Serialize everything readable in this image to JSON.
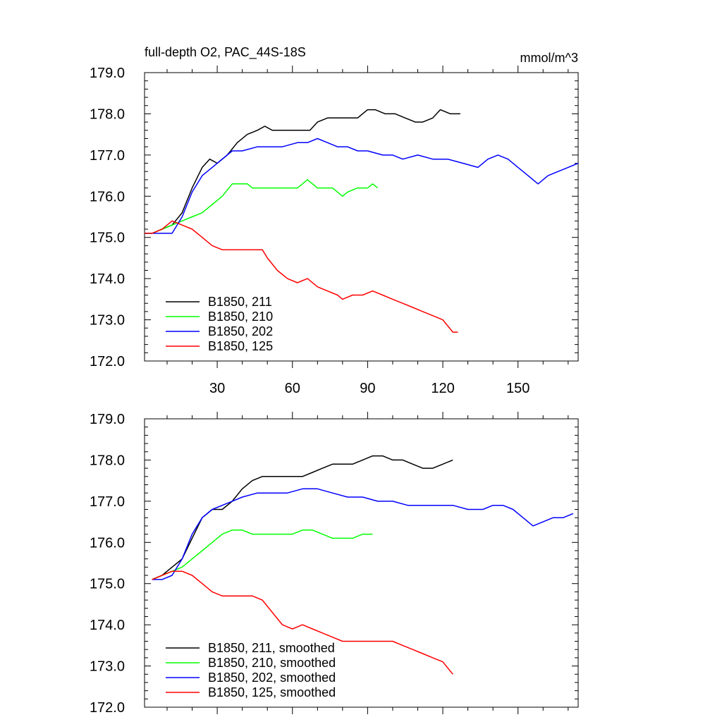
{
  "chart_data": [
    {
      "type": "line",
      "title": "full-depth O2, PAC_44S-18S",
      "units": "mmol/m^3",
      "xlim": [
        1,
        174
      ],
      "ylim": [
        172.0,
        179.0
      ],
      "yticks": [
        "172.0",
        "173.0",
        "174.0",
        "175.0",
        "176.0",
        "177.0",
        "178.0",
        "179.0"
      ],
      "xticks": [
        "30",
        "60",
        "90",
        "120",
        "150"
      ],
      "legend_position": "lower-left",
      "grid": false,
      "series": [
        {
          "name": "B1850, 211",
          "color": "#000000",
          "x": [
            1,
            4,
            8,
            12,
            16,
            20,
            24,
            27,
            30,
            34,
            38,
            42,
            46,
            49,
            52,
            56,
            60,
            64,
            67,
            70,
            74,
            78,
            82,
            86,
            90,
            93,
            97,
            101,
            105,
            109,
            112,
            116,
            119,
            123,
            127
          ],
          "y": [
            175.1,
            175.1,
            175.2,
            175.3,
            175.6,
            176.2,
            176.7,
            176.9,
            176.8,
            177.0,
            177.3,
            177.5,
            177.6,
            177.7,
            177.6,
            177.6,
            177.6,
            177.6,
            177.6,
            177.8,
            177.9,
            177.9,
            177.9,
            177.9,
            178.1,
            178.1,
            178.0,
            178.0,
            177.9,
            177.8,
            177.8,
            177.9,
            178.1,
            178.0,
            178.0
          ]
        },
        {
          "name": "B1850, 210",
          "color": "#00ff00",
          "x": [
            1,
            4,
            8,
            12,
            16,
            20,
            24,
            28,
            32,
            36,
            38,
            40,
            42,
            44,
            48,
            52,
            56,
            60,
            62,
            64,
            66,
            68,
            70,
            72,
            76,
            78,
            80,
            82,
            86,
            90,
            92,
            94
          ],
          "y": [
            175.1,
            175.1,
            175.2,
            175.3,
            175.4,
            175.5,
            175.6,
            175.8,
            176.0,
            176.3,
            176.3,
            176.3,
            176.3,
            176.2,
            176.2,
            176.2,
            176.2,
            176.2,
            176.2,
            176.3,
            176.4,
            176.3,
            176.2,
            176.2,
            176.2,
            176.1,
            176.0,
            176.1,
            176.2,
            176.2,
            176.3,
            176.2
          ]
        },
        {
          "name": "B1850, 202",
          "color": "#0000ff",
          "x": [
            1,
            4,
            8,
            12,
            16,
            20,
            24,
            28,
            32,
            36,
            40,
            46,
            50,
            56,
            62,
            66,
            70,
            74,
            78,
            82,
            86,
            90,
            96,
            100,
            104,
            110,
            116,
            122,
            128,
            134,
            138,
            142,
            146,
            150,
            154,
            158,
            162,
            166,
            170,
            174
          ],
          "y": [
            175.1,
            175.1,
            175.1,
            175.1,
            175.5,
            176.1,
            176.5,
            176.7,
            176.9,
            177.1,
            177.1,
            177.2,
            177.2,
            177.2,
            177.3,
            177.3,
            177.4,
            177.3,
            177.2,
            177.2,
            177.1,
            177.1,
            177.0,
            177.0,
            176.9,
            177.0,
            176.9,
            176.9,
            176.8,
            176.7,
            176.9,
            177.0,
            176.9,
            176.7,
            176.5,
            176.3,
            176.5,
            176.6,
            176.7,
            176.8
          ]
        },
        {
          "name": "B1850, 125",
          "color": "#ff0000",
          "x": [
            1,
            4,
            8,
            10,
            12,
            16,
            20,
            24,
            28,
            32,
            36,
            40,
            44,
            48,
            50,
            54,
            58,
            62,
            66,
            70,
            74,
            78,
            80,
            84,
            88,
            92,
            96,
            100,
            104,
            108,
            112,
            116,
            120,
            124,
            126
          ],
          "y": [
            175.1,
            175.1,
            175.2,
            175.3,
            175.4,
            175.3,
            175.2,
            175.0,
            174.8,
            174.7,
            174.7,
            174.7,
            174.7,
            174.7,
            174.5,
            174.2,
            174.0,
            173.9,
            174.0,
            173.8,
            173.7,
            173.6,
            173.5,
            173.6,
            173.6,
            173.7,
            173.6,
            173.5,
            173.4,
            173.3,
            173.2,
            173.1,
            173.0,
            172.7,
            172.7
          ]
        }
      ]
    },
    {
      "type": "line",
      "xlim": [
        1,
        174
      ],
      "ylim": [
        172.0,
        179.0
      ],
      "yticks": [
        "172.0",
        "173.0",
        "174.0",
        "175.0",
        "176.0",
        "177.0",
        "178.0",
        "179.0"
      ],
      "legend_position": "lower-left",
      "grid": false,
      "series": [
        {
          "name": "B1850, 211, smoothed",
          "color": "#000000",
          "x": [
            4,
            8,
            12,
            16,
            20,
            24,
            28,
            32,
            36,
            40,
            44,
            48,
            52,
            56,
            60,
            64,
            68,
            72,
            76,
            80,
            84,
            88,
            92,
            96,
            100,
            104,
            108,
            112,
            116,
            120,
            124
          ],
          "y": [
            175.1,
            175.2,
            175.4,
            175.6,
            176.1,
            176.6,
            176.8,
            176.8,
            177.0,
            177.3,
            177.5,
            177.6,
            177.6,
            177.6,
            177.6,
            177.6,
            177.7,
            177.8,
            177.9,
            177.9,
            177.9,
            178.0,
            178.1,
            178.1,
            178.0,
            178.0,
            177.9,
            177.8,
            177.8,
            177.9,
            178.0
          ]
        },
        {
          "name": "B1850, 210, smoothed",
          "color": "#00ff00",
          "x": [
            4,
            8,
            12,
            16,
            20,
            24,
            28,
            32,
            36,
            40,
            44,
            48,
            52,
            56,
            60,
            64,
            68,
            72,
            76,
            80,
            84,
            88,
            92
          ],
          "y": [
            175.1,
            175.2,
            175.3,
            175.4,
            175.6,
            175.8,
            176.0,
            176.2,
            176.3,
            176.3,
            176.2,
            176.2,
            176.2,
            176.2,
            176.2,
            176.3,
            176.3,
            176.2,
            176.1,
            176.1,
            176.1,
            176.2,
            176.2
          ]
        },
        {
          "name": "B1850, 202, smoothed",
          "color": "#0000ff",
          "x": [
            4,
            8,
            12,
            16,
            20,
            24,
            28,
            32,
            36,
            40,
            46,
            52,
            58,
            64,
            70,
            76,
            82,
            88,
            94,
            100,
            106,
            112,
            118,
            124,
            130,
            136,
            140,
            144,
            148,
            152,
            156,
            160,
            164,
            168,
            172
          ],
          "y": [
            175.1,
            175.1,
            175.2,
            175.6,
            176.2,
            176.6,
            176.8,
            176.9,
            177.0,
            177.1,
            177.2,
            177.2,
            177.2,
            177.3,
            177.3,
            177.2,
            177.1,
            177.1,
            177.0,
            177.0,
            176.9,
            176.9,
            176.9,
            176.9,
            176.8,
            176.8,
            176.9,
            176.9,
            176.8,
            176.6,
            176.4,
            176.5,
            176.6,
            176.6,
            176.7
          ]
        },
        {
          "name": "B1850, 125, smoothed",
          "color": "#ff0000",
          "x": [
            4,
            8,
            12,
            16,
            20,
            24,
            28,
            32,
            36,
            40,
            44,
            48,
            52,
            56,
            60,
            64,
            68,
            72,
            76,
            80,
            84,
            88,
            92,
            96,
            100,
            104,
            108,
            112,
            116,
            120,
            124
          ],
          "y": [
            175.1,
            175.2,
            175.3,
            175.3,
            175.2,
            175.0,
            174.8,
            174.7,
            174.7,
            174.7,
            174.7,
            174.6,
            174.3,
            174.0,
            173.9,
            174.0,
            173.9,
            173.8,
            173.7,
            173.6,
            173.6,
            173.6,
            173.6,
            173.6,
            173.6,
            173.5,
            173.4,
            173.3,
            173.2,
            173.1,
            172.8
          ]
        }
      ]
    }
  ]
}
